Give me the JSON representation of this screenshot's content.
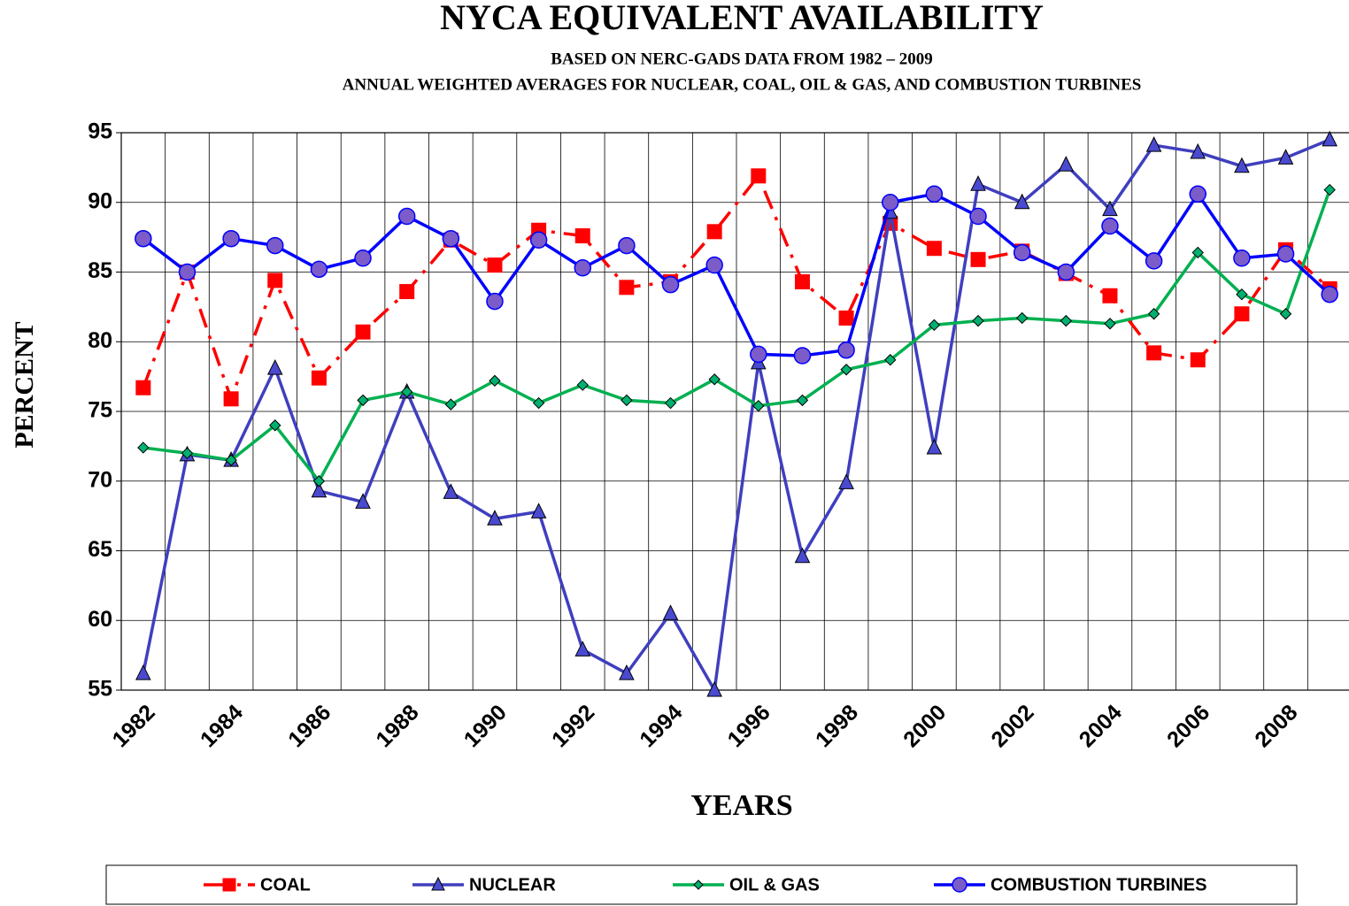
{
  "chart_data": {
    "type": "line",
    "title": "NYCA EQUIVALENT AVAILABILITY",
    "subtitle": "BASED ON NERC-GADS DATA FROM 1982 – 2009",
    "subtitle2": "ANNUAL WEIGHTED AVERAGES FOR NUCLEAR, COAL, OIL & GAS, AND COMBUSTION TURBINES",
    "x_label": "YEARS",
    "y_label": "PERCENT",
    "categories": [
      "1982",
      null,
      "1984",
      null,
      "1986",
      null,
      "1988",
      null,
      "1990",
      null,
      "1992",
      null,
      "1994",
      null,
      "1996",
      null,
      "1998",
      null,
      "2000",
      null,
      "2002",
      null,
      "2004",
      null,
      "2006",
      null,
      "2008",
      null
    ],
    "ylim": [
      55,
      95
    ],
    "yticks": [
      55,
      60,
      65,
      70,
      75,
      80,
      85,
      90,
      95
    ],
    "grid": true,
    "legend": "bottom",
    "series": [
      {
        "name": "COAL",
        "color": "#ff0000",
        "marker": "square",
        "marker_color": "#ff0000",
        "line_style": "dashdot",
        "values": [
          76.7,
          85.0,
          75.9,
          84.4,
          77.4,
          80.7,
          83.6,
          87.3,
          85.5,
          88.0,
          87.6,
          83.9,
          84.3,
          87.9,
          91.9,
          84.3,
          81.7,
          88.5,
          86.7,
          85.9,
          86.5,
          84.9,
          83.3,
          79.2,
          78.7,
          82.0,
          86.6,
          83.8
        ]
      },
      {
        "name": "NUCLEAR",
        "color": "#3f3fbf",
        "marker": "triangle",
        "marker_color": "#4a4ad0",
        "line_style": "solid",
        "values": [
          56.2,
          71.9,
          71.5,
          78.1,
          69.3,
          68.5,
          76.4,
          69.2,
          67.3,
          67.8,
          57.9,
          56.2,
          60.5,
          55.0,
          78.5,
          64.6,
          69.9,
          89.3,
          72.4,
          91.3,
          90.0,
          92.7,
          89.5,
          94.1,
          93.6,
          92.6,
          93.2,
          94.5
        ]
      },
      {
        "name": "OIL & GAS",
        "color": "#00b050",
        "marker": "diamond",
        "marker_color": "#00b070",
        "line_style": "solid",
        "values": [
          72.4,
          72.0,
          71.5,
          74.0,
          70.0,
          75.8,
          76.4,
          75.5,
          77.2,
          75.6,
          76.9,
          75.8,
          75.6,
          77.3,
          75.4,
          75.8,
          78.0,
          78.7,
          81.2,
          81.5,
          81.7,
          81.5,
          81.3,
          82.0,
          86.4,
          83.4,
          82.0,
          90.9
        ]
      },
      {
        "name": "COMBUSTION TURBINES",
        "color": "#0000ff",
        "marker": "circle",
        "marker_color": "#7b5cc8",
        "line_style": "solid",
        "values": [
          87.4,
          85.0,
          87.4,
          86.9,
          85.2,
          86.0,
          89.0,
          87.4,
          82.9,
          87.3,
          85.3,
          86.9,
          84.1,
          85.5,
          79.1,
          79.0,
          79.4,
          90.0,
          90.6,
          89.0,
          86.4,
          85.0,
          88.3,
          85.8,
          90.6,
          86.0,
          86.3,
          83.4
        ]
      }
    ]
  }
}
